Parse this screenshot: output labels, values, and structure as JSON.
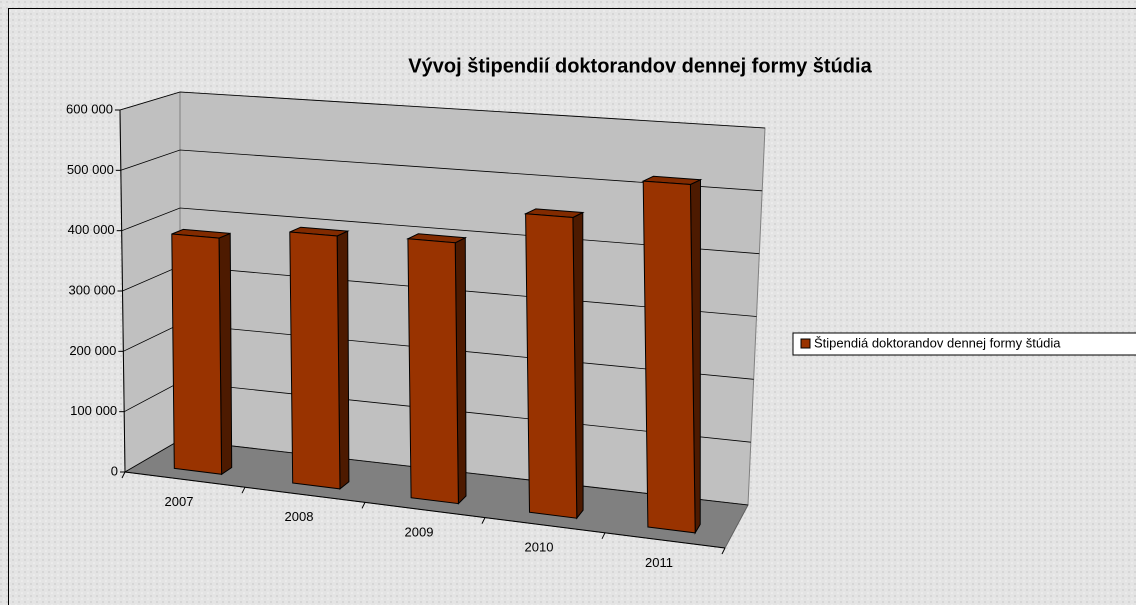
{
  "chart_data": {
    "type": "bar3d",
    "title": "Vývoj štipendií doktorandov dennej formy štúdia",
    "categories": [
      "2007",
      "2008",
      "2009",
      "2010",
      "2011"
    ],
    "series": [
      {
        "name": "Štipendiá doktorandov dennej formy štúdia",
        "color": "#993300",
        "values": [
          390000,
          410000,
          415000,
          470000,
          535000
        ]
      }
    ],
    "ylim": [
      0,
      600000
    ],
    "yticks": [
      {
        "value": 0,
        "label": "0"
      },
      {
        "value": 100000,
        "label": "100 000"
      },
      {
        "value": 200000,
        "label": "200 000"
      },
      {
        "value": 300000,
        "label": "300 000"
      },
      {
        "value": 400000,
        "label": "400 000"
      },
      {
        "value": 500000,
        "label": "500 000"
      },
      {
        "value": 600000,
        "label": "600 000"
      }
    ],
    "grid": true,
    "legend": "right"
  }
}
